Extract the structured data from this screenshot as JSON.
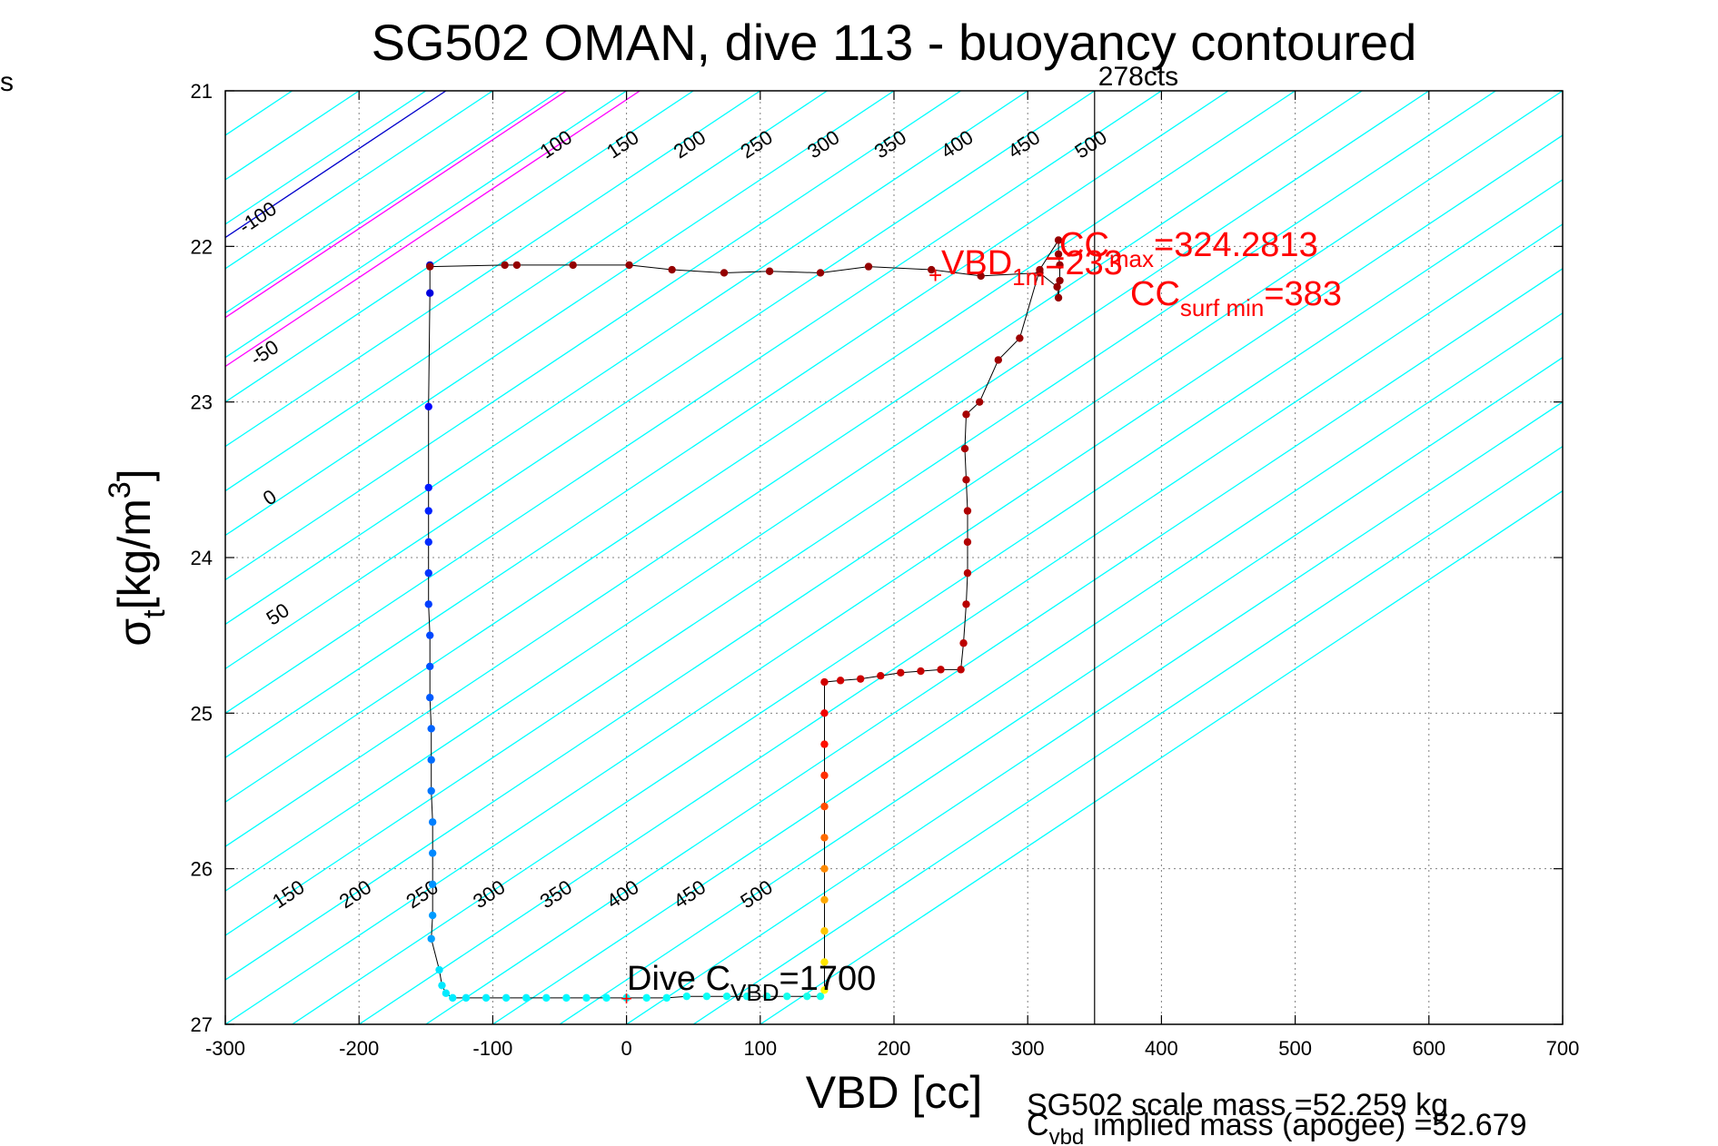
{
  "chart_data": {
    "type": "scatter",
    "title": "SG502 OMAN, dive 113 - buoyancy contoured",
    "xlabel": "VBD [cc]",
    "ylabel_main": "σ",
    "ylabel_sub": "t",
    "ylabel_unit": "[kg/m",
    "ylabel_sup": "3",
    "ylabel_close": "]",
    "xlim": [
      -300,
      700
    ],
    "ylim": [
      21,
      27
    ],
    "y_reversed": true,
    "grid": true,
    "xticks": [
      -300,
      -200,
      -100,
      0,
      100,
      200,
      300,
      400,
      500,
      600,
      700
    ],
    "yticks": [
      21,
      22,
      23,
      24,
      25,
      26,
      27
    ],
    "corner_label": "s",
    "vertical_line": {
      "x": 350,
      "label": "278cts"
    },
    "contours": {
      "slope_cc_per_sigma": -175,
      "left_labels": [
        {
          "text": "-100",
          "x": -273,
          "y": 21.85
        },
        {
          "text": "-50",
          "x": -268,
          "y": 22.72
        },
        {
          "text": "0",
          "x": -264,
          "y": 23.65
        },
        {
          "text": "50",
          "x": -258,
          "y": 24.4
        }
      ],
      "top_labels": [
        {
          "text": "100",
          "x": -50,
          "y": 21.38
        },
        {
          "text": "150",
          "x": 0,
          "y": 21.38
        },
        {
          "text": "200",
          "x": 50,
          "y": 21.38
        },
        {
          "text": "250",
          "x": 100,
          "y": 21.38
        },
        {
          "text": "300",
          "x": 150,
          "y": 21.38
        },
        {
          "text": "350",
          "x": 200,
          "y": 21.38
        },
        {
          "text": "400",
          "x": 250,
          "y": 21.38
        },
        {
          "text": "450",
          "x": 300,
          "y": 21.38
        },
        {
          "text": "500",
          "x": 350,
          "y": 21.38
        }
      ],
      "bottom_labels": [
        {
          "text": "150",
          "x": -250,
          "y": 26.2
        },
        {
          "text": "200",
          "x": -200,
          "y": 26.2
        },
        {
          "text": "250",
          "x": -150,
          "y": 26.2
        },
        {
          "text": "300",
          "x": -100,
          "y": 26.2
        },
        {
          "text": "350",
          "x": -50,
          "y": 26.2
        },
        {
          "text": "400",
          "x": 0,
          "y": 26.2
        },
        {
          "text": "450",
          "x": 50,
          "y": 26.2
        },
        {
          "text": "500",
          "x": 100,
          "y": 26.2
        }
      ],
      "cyan_intercepts_at_21": [
        -300,
        -250,
        -200,
        -150,
        -100,
        -50,
        0,
        50,
        100,
        150,
        200,
        250,
        300,
        350,
        400,
        450,
        500,
        550,
        600,
        650,
        700,
        750,
        800,
        850,
        900,
        950,
        1000,
        1050,
        1100,
        1150
      ],
      "blue_intercepts_at_21": [
        -135
      ],
      "magenta_intercepts_at_21": [
        -45,
        10
      ]
    },
    "series": [
      {
        "name": "dive",
        "points": [
          [
            -146,
            26.45
          ],
          [
            -145,
            26.3
          ],
          [
            -145,
            26.1
          ],
          [
            -145,
            25.9
          ],
          [
            -145,
            25.7
          ],
          [
            -146,
            25.5
          ],
          [
            -146,
            25.3
          ],
          [
            -146,
            25.1
          ],
          [
            -147,
            24.9
          ],
          [
            -147,
            24.7
          ],
          [
            -147,
            24.5
          ],
          [
            -148,
            24.3
          ],
          [
            -148,
            24.1
          ],
          [
            -148,
            23.9
          ],
          [
            -148,
            23.7
          ],
          [
            -148,
            23.55
          ],
          [
            -148,
            23.03
          ],
          [
            -147,
            22.3
          ],
          [
            -147,
            22.12
          ],
          [
            -140,
            26.65
          ],
          [
            -138,
            26.75
          ],
          [
            -135,
            26.8
          ],
          [
            -130,
            26.83
          ],
          [
            -120,
            26.83
          ],
          [
            -105,
            26.83
          ],
          [
            -90,
            26.83
          ],
          [
            -75,
            26.83
          ],
          [
            -60,
            26.83
          ],
          [
            -45,
            26.83
          ],
          [
            -30,
            26.83
          ],
          [
            -15,
            26.83
          ],
          [
            0,
            26.83
          ],
          [
            15,
            26.83
          ],
          [
            30,
            26.83
          ],
          [
            45,
            26.82
          ],
          [
            60,
            26.82
          ],
          [
            75,
            26.82
          ],
          [
            90,
            26.82
          ],
          [
            105,
            26.82
          ],
          [
            120,
            26.82
          ],
          [
            135,
            26.82
          ],
          [
            145,
            26.82
          ]
        ]
      },
      {
        "name": "climb",
        "points": [
          [
            148,
            26.78
          ],
          [
            148,
            26.6
          ],
          [
            148,
            26.4
          ],
          [
            148,
            26.2
          ],
          [
            148,
            26.0
          ],
          [
            148,
            25.8
          ],
          [
            148,
            25.6
          ],
          [
            148,
            25.4
          ],
          [
            148,
            25.2
          ],
          [
            148,
            25.0
          ],
          [
            148,
            24.8
          ],
          [
            160,
            24.79
          ],
          [
            175,
            24.78
          ],
          [
            190,
            24.76
          ],
          [
            205,
            24.74
          ],
          [
            220,
            24.73
          ],
          [
            235,
            24.72
          ],
          [
            250,
            24.72
          ],
          [
            252,
            24.55
          ],
          [
            254,
            24.3
          ],
          [
            255,
            24.1
          ],
          [
            255,
            23.9
          ],
          [
            255,
            23.7
          ],
          [
            254,
            23.5
          ],
          [
            253,
            23.3
          ],
          [
            254,
            23.08
          ],
          [
            264,
            23.0
          ],
          [
            278,
            22.73
          ],
          [
            294,
            22.59
          ],
          [
            309,
            22.15
          ],
          [
            323,
            21.96
          ],
          [
            323,
            22.05
          ],
          [
            324,
            22.12
          ],
          [
            324,
            22.22
          ],
          [
            323,
            22.33
          ],
          [
            322,
            22.26
          ],
          [
            309,
            22.17
          ],
          [
            265,
            22.19
          ],
          [
            228,
            22.15
          ],
          [
            181,
            22.13
          ],
          [
            145,
            22.17
          ],
          [
            107,
            22.16
          ],
          [
            73,
            22.17
          ],
          [
            34,
            22.15
          ],
          [
            2,
            22.12
          ],
          [
            -40,
            22.12
          ],
          [
            -82,
            22.12
          ],
          [
            -91,
            22.12
          ],
          [
            -147,
            22.13
          ]
        ]
      }
    ],
    "annotations": {
      "cc_top_main": "CC",
      "cc_top_sub": "max",
      "cc_top_value": "=324.2813",
      "vbd_main": "VBD",
      "vbd_sub": "1m",
      "vbd_value": "=233",
      "cc_surf_main": "CC",
      "cc_surf_sub": "surf min",
      "cc_surf_value": "=383",
      "dive_main": "Dive C",
      "dive_sub": "VBD",
      "dive_value": "=1700",
      "scale_mass_text": "SG502 scale mass =52.259 kg",
      "implied_main": "C",
      "implied_sub": "vbd",
      "implied_text": "implied mass (apogee) =52.679"
    },
    "colors": {
      "cyan": "#00ffff",
      "blue": "#0000cc",
      "magenta": "#ff00ff",
      "grid": "#808080",
      "red": "#ff0000",
      "track": "#000000"
    }
  }
}
